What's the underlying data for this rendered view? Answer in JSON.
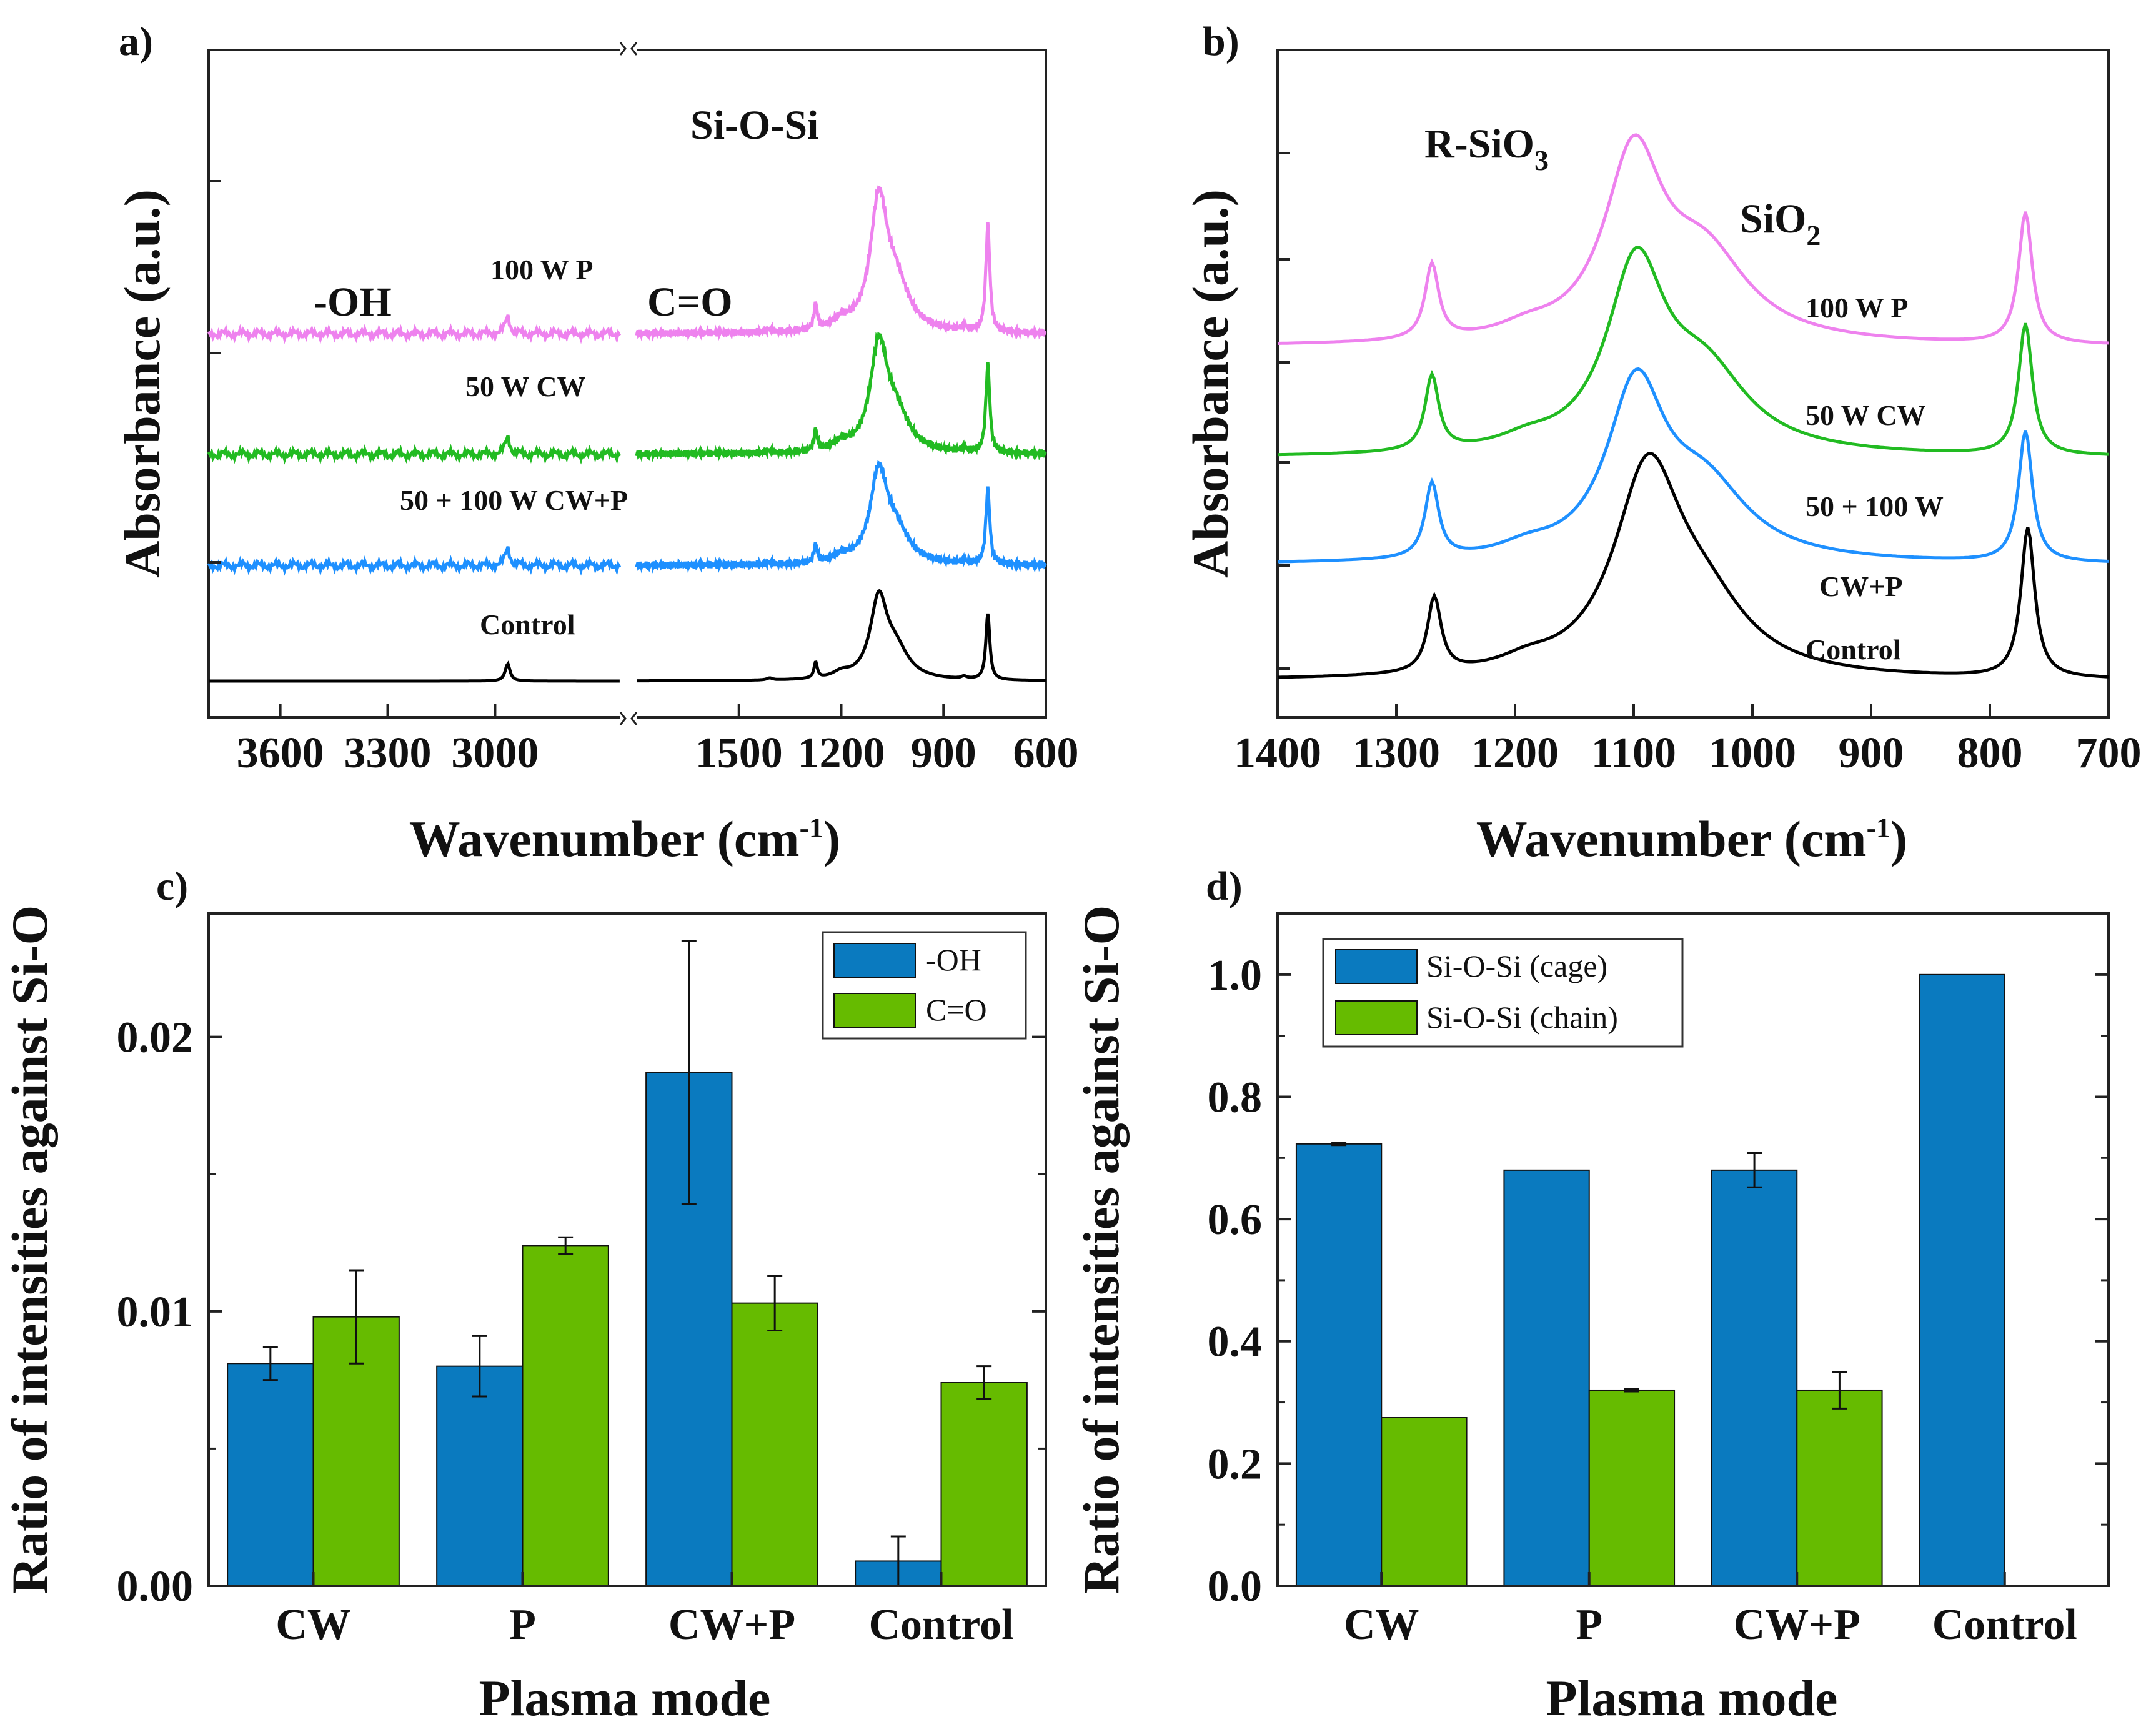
{
  "chart_data": [
    {
      "panel": "a)",
      "type": "line",
      "xlabel": "Wavenumber (cm",
      "xlabel_sup": "-1",
      "xlabel_end": ")",
      "ylabel": "Absorbance (a.u.)",
      "xlim_left": [
        3800,
        2650
      ],
      "xlim_right": [
        1800,
        600
      ],
      "xticks": [
        "3600",
        "3300",
        "3000",
        "1500",
        "1200",
        "900",
        "600"
      ],
      "annotations": {
        "oh": "-OH",
        "co": "C=O",
        "sios": "Si-O-Si"
      },
      "series": [
        {
          "name": "100 W P",
          "label": "100 W P",
          "color": "#ee82ee",
          "offset": 3
        },
        {
          "name": "50 W CW",
          "label": "50 W CW",
          "color": "#22bb22",
          "offset": 2
        },
        {
          "name": "50 + 100 W CW+P",
          "label": "50 + 100 W CW+P",
          "color": "#1e90ff",
          "offset": 1
        },
        {
          "name": "Control",
          "label": "Control",
          "color": "#000000",
          "offset": 0
        }
      ]
    },
    {
      "panel": "b)",
      "type": "line",
      "xlabel": "Wavenumber (cm",
      "xlabel_sup": "-1",
      "xlabel_end": ")",
      "ylabel": "Absorbance (a.u.)",
      "xlim": [
        1400,
        700
      ],
      "xticks": [
        "1400",
        "1300",
        "1200",
        "1100",
        "1000",
        "900",
        "800",
        "700"
      ],
      "annotations": {
        "rsio": "R-SiO",
        "rsio_sub": "3",
        "sio2": "SiO",
        "sio2_sub": "2"
      },
      "series": [
        {
          "name": "100 W P",
          "label": "100 W P",
          "color": "#ee82ee",
          "offset": 3
        },
        {
          "name": "50 W CW",
          "label": "50 W CW",
          "color": "#22bb22",
          "offset": 2
        },
        {
          "name": "50 + 100 W CW+P",
          "label": "50 + 100 W",
          "label2": "CW+P",
          "color": "#1e90ff",
          "offset": 1
        },
        {
          "name": "Control",
          "label": "Control",
          "color": "#000000",
          "offset": 0
        }
      ]
    },
    {
      "panel": "c)",
      "type": "bar",
      "title": "",
      "xlabel": "Plasma mode",
      "ylabel": "Ratio of intensities against Si-O",
      "categories": [
        "CW",
        "P",
        "CW+P",
        "Control"
      ],
      "ylim": [
        0,
        0.0245
      ],
      "yticks": [
        "0.00",
        "0.01",
        "0.02"
      ],
      "series": [
        {
          "name": "-OH",
          "color": "#0a7abf",
          "values": [
            0.0081,
            0.008,
            0.0187,
            0.0009
          ],
          "errors": [
            0.0006,
            0.0011,
            0.0048,
            0.0009
          ]
        },
        {
          "name": "C=O",
          "color": "#66bb00",
          "values": [
            0.0098,
            0.0124,
            0.0103,
            0.0074
          ],
          "errors": [
            0.0017,
            0.0003,
            0.001,
            0.0006
          ]
        }
      ]
    },
    {
      "panel": "d)",
      "type": "bar",
      "title": "",
      "xlabel": "Plasma mode",
      "ylabel": "Ratio of intensities against Si-O",
      "categories": [
        "CW",
        "P",
        "CW+P",
        "Control"
      ],
      "ylim": [
        0,
        1.1
      ],
      "yticks": [
        "0.0",
        "0.2",
        "0.4",
        "0.6",
        "0.8",
        "1.0"
      ],
      "series": [
        {
          "name": "Si-O-Si (cage)",
          "color": "#0a7abf",
          "values": [
            0.723,
            0.68,
            0.68,
            1.0
          ],
          "errors": [
            0.002,
            0,
            0.028,
            0
          ]
        },
        {
          "name": "Si-O-Si (chain)",
          "color": "#66bb00",
          "values": [
            0.275,
            0.32,
            0.32,
            0
          ],
          "errors": [
            0,
            0.002,
            0.03,
            0
          ]
        }
      ]
    }
  ]
}
